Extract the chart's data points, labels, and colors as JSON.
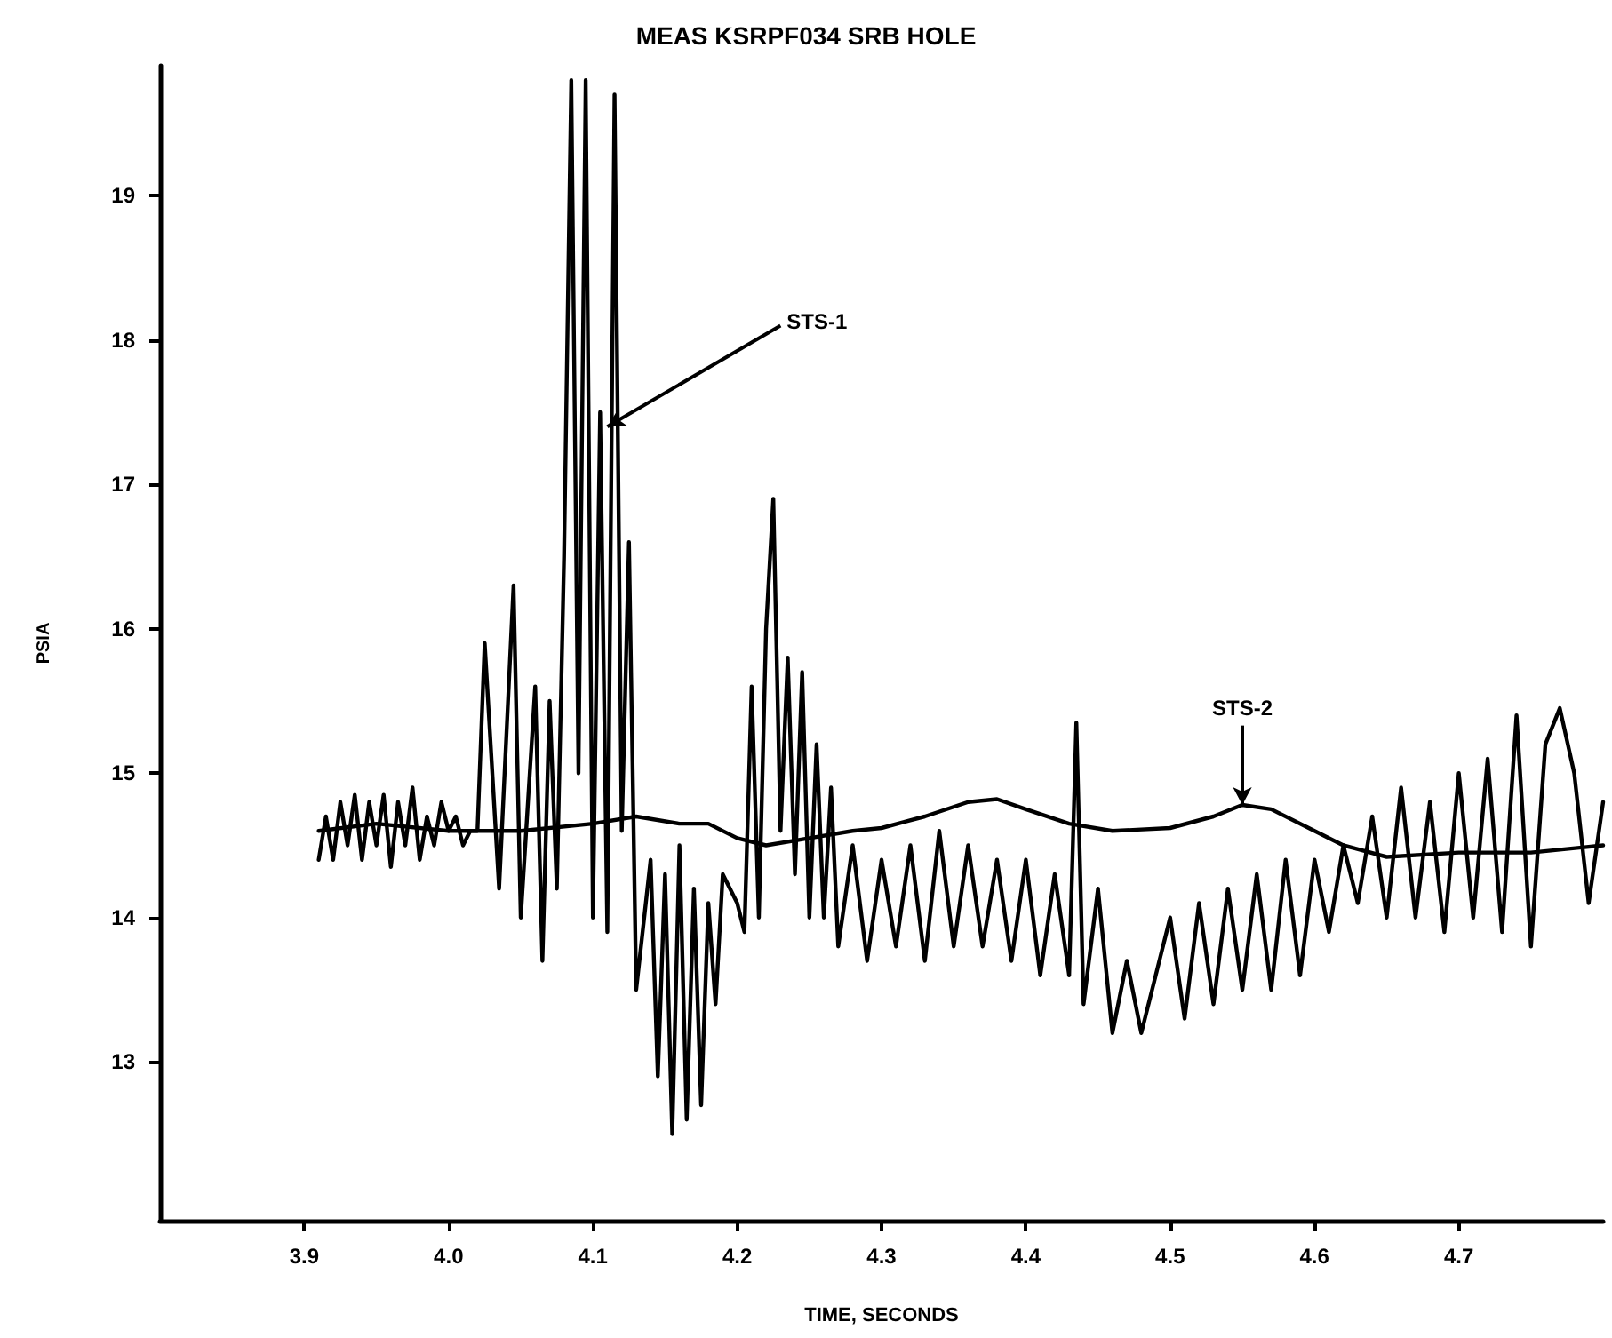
{
  "chart_data": {
    "type": "line",
    "title": "MEAS KSRPF034 SRB HOLE",
    "xlabel": "TIME, SECONDS",
    "ylabel": "PSIA",
    "xlim": [
      3.8,
      4.8
    ],
    "ylim": [
      11.9,
      19.9
    ],
    "xticks": [
      {
        "value": 3.9,
        "label": "3.9"
      },
      {
        "value": 4.0,
        "label": "4.0"
      },
      {
        "value": 4.1,
        "label": "4.1"
      },
      {
        "value": 4.2,
        "label": "4.2"
      },
      {
        "value": 4.3,
        "label": "4.3"
      },
      {
        "value": 4.4,
        "label": "4.4"
      },
      {
        "value": 4.5,
        "label": "4.5"
      },
      {
        "value": 4.6,
        "label": "4.6"
      },
      {
        "value": 4.7,
        "label": "4.7"
      }
    ],
    "yticks": [
      13,
      14,
      15,
      16,
      17,
      18,
      19
    ],
    "marker": "none",
    "line_style": "solid",
    "annotations": [
      {
        "text": "STS-1",
        "x": 4.11,
        "y": 17.4
      },
      {
        "text": "STS-2",
        "x": 4.55,
        "y": 14.78
      }
    ],
    "series": [
      {
        "color": "#000000",
        "x": [
          3.91,
          3.915,
          3.92,
          3.925,
          3.93,
          3.935,
          3.94,
          3.945,
          3.95,
          3.955,
          3.96,
          3.965,
          3.97,
          3.975,
          3.98,
          3.985,
          3.99,
          3.995,
          4.0,
          4.005,
          4.01,
          4.015,
          4.02,
          4.025,
          4.035,
          4.045,
          4.05,
          4.06,
          4.065,
          4.07,
          4.075,
          4.08,
          4.085,
          4.09,
          4.095,
          4.1,
          4.105,
          4.11,
          4.115,
          4.12,
          4.125,
          4.13,
          4.14,
          4.145,
          4.15,
          4.155,
          4.16,
          4.165,
          4.17,
          4.175,
          4.18,
          4.185,
          4.19,
          4.2,
          4.205,
          4.21,
          4.215,
          4.22,
          4.225,
          4.23,
          4.235,
          4.24,
          4.245,
          4.25,
          4.255,
          4.26,
          4.265,
          4.27,
          4.28,
          4.29,
          4.3,
          4.31,
          4.32,
          4.33,
          4.34,
          4.35,
          4.36,
          4.37,
          4.38,
          4.39,
          4.4,
          4.41,
          4.42,
          4.43,
          4.435,
          4.44,
          4.45,
          4.46,
          4.47,
          4.48,
          4.49,
          4.5,
          4.51,
          4.52,
          4.53,
          4.54,
          4.55,
          4.56,
          4.57,
          4.58,
          4.59,
          4.6,
          4.61,
          4.62,
          4.63,
          4.64,
          4.65,
          4.66,
          4.67,
          4.68,
          4.69,
          4.7,
          4.71,
          4.72,
          4.73,
          4.74,
          4.75,
          4.76,
          4.77,
          4.78,
          4.79,
          4.8
        ],
        "values": [
          14.4,
          14.7,
          14.4,
          14.8,
          14.5,
          14.85,
          14.4,
          14.8,
          14.5,
          14.85,
          14.35,
          14.8,
          14.5,
          14.9,
          14.4,
          14.7,
          14.5,
          14.8,
          14.6,
          14.7,
          14.5,
          14.6,
          14.6,
          15.9,
          14.2,
          16.3,
          14.0,
          15.6,
          13.7,
          15.5,
          14.2,
          16.5,
          19.8,
          15.0,
          19.8,
          14.0,
          17.5,
          13.9,
          19.7,
          14.6,
          16.6,
          13.5,
          14.4,
          12.9,
          14.3,
          12.5,
          14.5,
          12.6,
          14.2,
          12.7,
          14.1,
          13.4,
          14.3,
          14.1,
          13.9,
          15.6,
          14.0,
          16.0,
          16.9,
          14.6,
          15.8,
          14.3,
          15.7,
          14.0,
          15.2,
          14.0,
          14.9,
          13.8,
          14.5,
          13.7,
          14.4,
          13.8,
          14.5,
          13.7,
          14.6,
          13.8,
          14.5,
          13.8,
          14.4,
          13.7,
          14.4,
          13.6,
          14.3,
          13.6,
          15.35,
          13.4,
          14.2,
          13.2,
          13.7,
          13.2,
          13.6,
          14.0,
          13.3,
          14.1,
          13.4,
          14.2,
          13.5,
          14.3,
          13.5,
          14.4,
          13.6,
          14.4,
          13.9,
          14.5,
          14.1,
          14.7,
          14.0,
          14.9,
          14.0,
          14.8,
          13.9,
          15.0,
          14.0,
          15.1,
          13.9,
          15.4,
          13.8,
          15.2,
          15.45,
          15.0,
          14.1,
          14.8
        ]
      },
      {
        "color": "#000000",
        "x": [
          3.91,
          3.95,
          4.0,
          4.05,
          4.1,
          4.13,
          4.16,
          4.18,
          4.2,
          4.22,
          4.25,
          4.28,
          4.3,
          4.33,
          4.36,
          4.38,
          4.4,
          4.43,
          4.46,
          4.5,
          4.53,
          4.55,
          4.57,
          4.6,
          4.62,
          4.65,
          4.7,
          4.75,
          4.8
        ],
        "values": [
          14.6,
          14.65,
          14.6,
          14.6,
          14.65,
          14.7,
          14.65,
          14.65,
          14.55,
          14.5,
          14.55,
          14.6,
          14.62,
          14.7,
          14.8,
          14.82,
          14.75,
          14.65,
          14.6,
          14.62,
          14.7,
          14.78,
          14.75,
          14.6,
          14.5,
          14.42,
          14.45,
          14.45,
          14.5
        ]
      }
    ]
  }
}
